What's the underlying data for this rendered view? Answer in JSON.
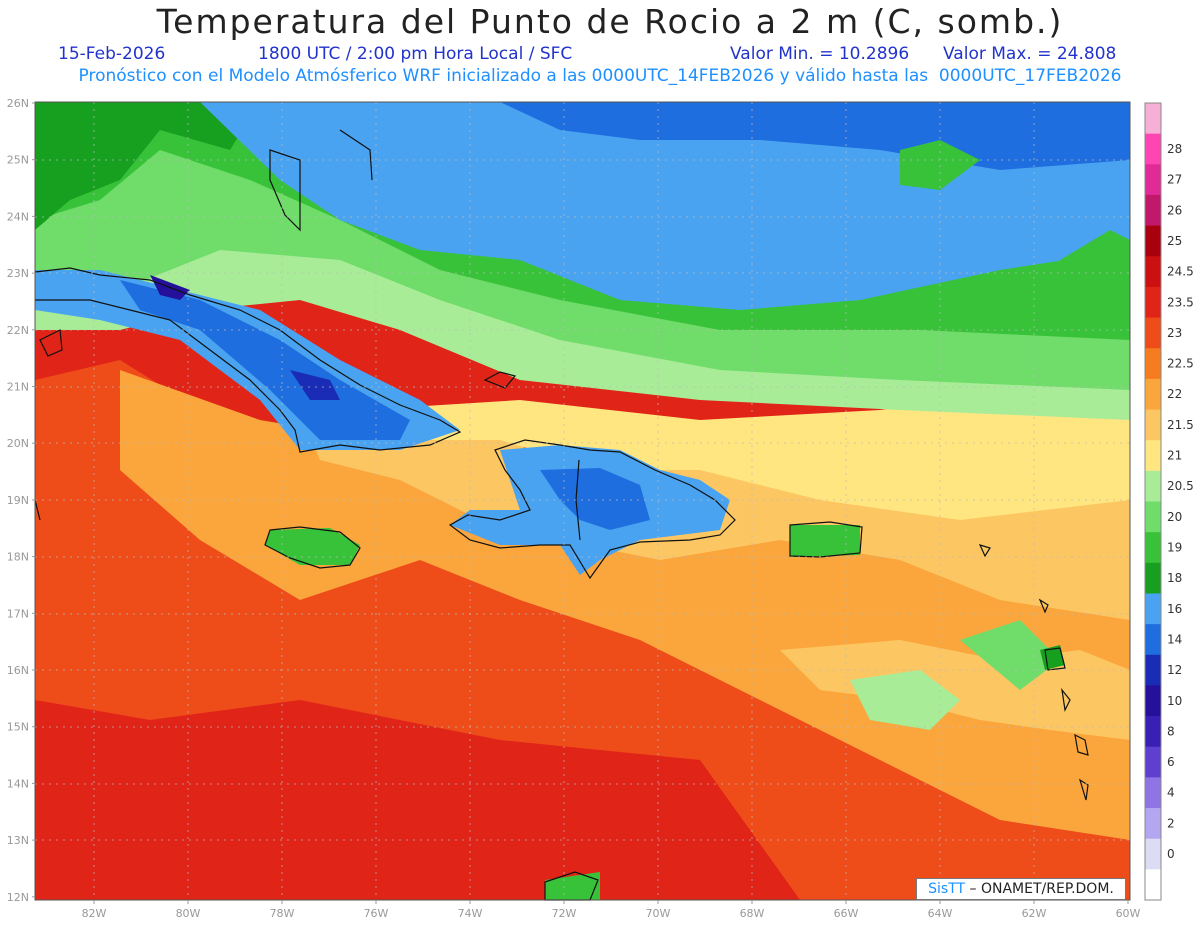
{
  "title": "Temperatura del Punto de Rocio a 2 m (C, somb.)",
  "date": "15-Feb-2026",
  "time": "1800 UTC / 2:00 pm Hora Local / SFC",
  "min_label": "Valor Min. = 10.2896",
  "max_label": "Valor Max. = 24.808",
  "subtitle": "Pronóstico con el Modelo Atmósferico WRF inicializado a las 0000UTC_14FEB2026 y válido hasta las  0000UTC_17FEB2026",
  "credit": {
    "brand": "SisTT",
    "text": " – ONAMET/REP.DOM."
  },
  "lat_labels": [
    "26N",
    "25N",
    "24N",
    "23N",
    "22N",
    "21N",
    "20N",
    "19N",
    "18N",
    "17N",
    "16N",
    "15N",
    "14N",
    "13N",
    "12N"
  ],
  "lon_labels": [
    "82W",
    "80W",
    "78W",
    "76W",
    "74W",
    "72W",
    "70W",
    "68W",
    "66W",
    "64W",
    "62W",
    "60W"
  ],
  "colorbar": [
    {
      "label": "",
      "color": "#ffffff"
    },
    {
      "label": "0",
      "color": "#dcdcf5"
    },
    {
      "label": "2",
      "color": "#b4a6f0"
    },
    {
      "label": "4",
      "color": "#8f74e6"
    },
    {
      "label": "6",
      "color": "#5e3fcf"
    },
    {
      "label": "8",
      "color": "#3a1fb5"
    },
    {
      "label": "10",
      "color": "#24109a"
    },
    {
      "label": "12",
      "color": "#1a2bb5"
    },
    {
      "label": "14",
      "color": "#1f6ee0"
    },
    {
      "label": "16",
      "color": "#4aa3f0"
    },
    {
      "label": "18",
      "color": "#17a020"
    },
    {
      "label": "19",
      "color": "#38c23a"
    },
    {
      "label": "20",
      "color": "#70dc6a"
    },
    {
      "label": "20.5",
      "color": "#a8ec98"
    },
    {
      "label": "21",
      "color": "#ffe680"
    },
    {
      "label": "21.5",
      "color": "#fcc762"
    },
    {
      "label": "22",
      "color": "#fba63d"
    },
    {
      "label": "22.5",
      "color": "#f57d1f"
    },
    {
      "label": "23",
      "color": "#ee4d1a"
    },
    {
      "label": "23.5",
      "color": "#e02418"
    },
    {
      "label": "24.5",
      "color": "#cc0f10"
    },
    {
      "label": "25",
      "color": "#a8000e"
    },
    {
      "label": "26",
      "color": "#c2186b"
    },
    {
      "label": "27",
      "color": "#e02a95"
    },
    {
      "label": "28",
      "color": "#ff44b4"
    },
    {
      "label": "",
      "color": "#f6b0d6"
    }
  ]
}
